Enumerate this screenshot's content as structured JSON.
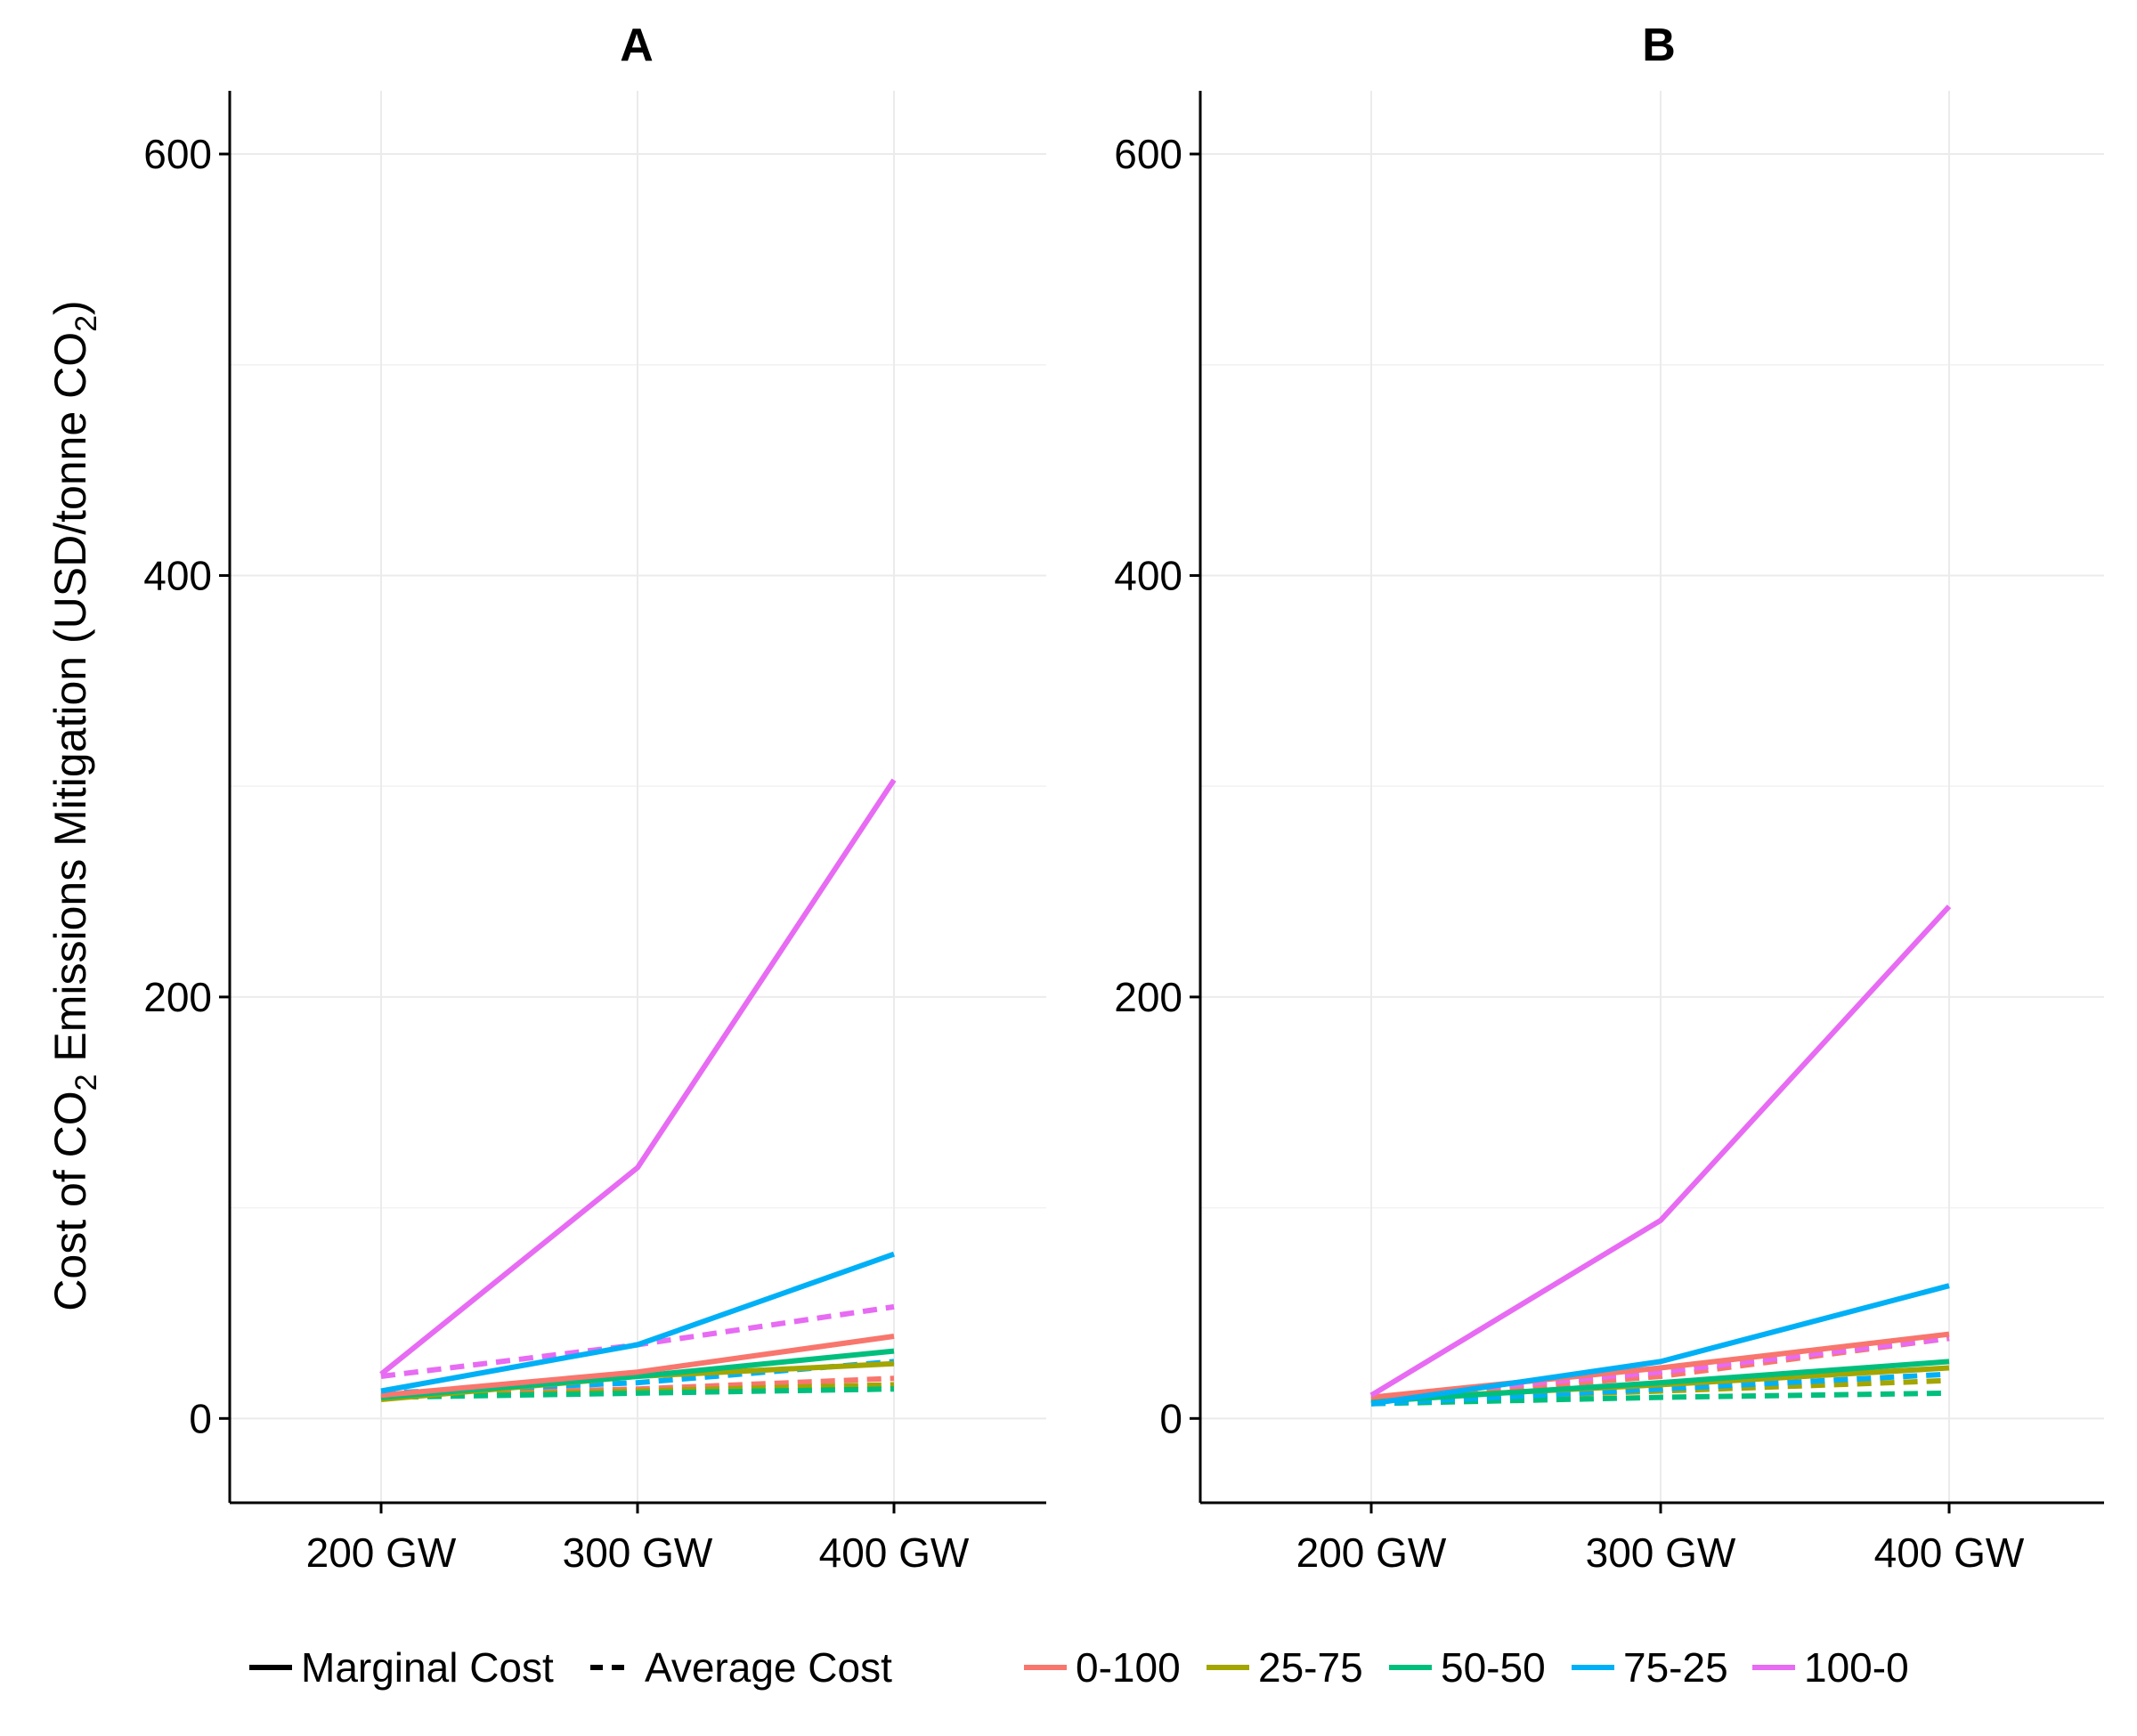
{
  "chart_data": {
    "type": "line",
    "y_axis_label": {
      "parts": [
        {
          "t": "Cost of CO"
        },
        {
          "t": "2",
          "sub": true
        },
        {
          "t": " Emissions Mitigation (USD/tonne CO"
        },
        {
          "t": "2",
          "sub": true
        },
        {
          "t": ")"
        }
      ]
    },
    "x_categories": [
      "200 GW",
      "300 GW",
      "400 GW"
    ],
    "ylim": [
      -40,
      630
    ],
    "yticks": [
      0,
      200,
      400,
      600
    ],
    "grid": true,
    "legend_position": "bottom",
    "line_type_legend": [
      {
        "label": "Marginal Cost",
        "dash": "solid"
      },
      {
        "label": "Average Cost",
        "dash": "dashed"
      }
    ],
    "series_colors": [
      {
        "name": "0-100",
        "color": "#F8766D"
      },
      {
        "name": "25-75",
        "color": "#A3A500"
      },
      {
        "name": "50-50",
        "color": "#00BF7D"
      },
      {
        "name": "75-25",
        "color": "#00B0F6"
      },
      {
        "name": "100-0",
        "color": "#E76BF3"
      }
    ],
    "panels": [
      {
        "title": "A",
        "series": [
          {
            "name": "0-100",
            "cost": "Average Cost",
            "values": [
              11,
              14,
              19
            ]
          },
          {
            "name": "25-75",
            "cost": "Average Cost",
            "values": [
              10,
              13,
              16
            ]
          },
          {
            "name": "50-50",
            "cost": "Average Cost",
            "values": [
              10,
              12,
              14
            ]
          },
          {
            "name": "75-25",
            "cost": "Average Cost",
            "values": [
              12,
              17,
              27
            ]
          },
          {
            "name": "100-0",
            "cost": "Average Cost",
            "values": [
              20,
              35,
              53
            ]
          },
          {
            "name": "25-75",
            "cost": "Marginal Cost",
            "values": [
              9,
              20,
              26
            ]
          },
          {
            "name": "50-50",
            "cost": "Marginal Cost",
            "values": [
              10,
              20,
              32
            ]
          },
          {
            "name": "0-100",
            "cost": "Marginal Cost",
            "values": [
              11,
              22,
              39
            ]
          },
          {
            "name": "75-25",
            "cost": "Marginal Cost",
            "values": [
              13,
              35,
              78
            ]
          },
          {
            "name": "100-0",
            "cost": "Marginal Cost",
            "values": [
              21,
              119,
              303
            ]
          }
        ]
      },
      {
        "title": "B",
        "series": [
          {
            "name": "0-100",
            "cost": "Average Cost",
            "values": [
              9,
              20,
              38
            ]
          },
          {
            "name": "25-75",
            "cost": "Average Cost",
            "values": [
              8,
              13,
              18
            ]
          },
          {
            "name": "50-50",
            "cost": "Average Cost",
            "values": [
              7,
              10,
              12
            ]
          },
          {
            "name": "75-25",
            "cost": "Average Cost",
            "values": [
              7,
              14,
              21
            ]
          },
          {
            "name": "100-0",
            "cost": "Average Cost",
            "values": [
              10,
              22,
              38
            ]
          },
          {
            "name": "25-75",
            "cost": "Marginal Cost",
            "values": [
              9,
              16,
              24
            ]
          },
          {
            "name": "50-50",
            "cost": "Marginal Cost",
            "values": [
              8,
              17,
              27
            ]
          },
          {
            "name": "0-100",
            "cost": "Marginal Cost",
            "values": [
              10,
              24,
              40
            ]
          },
          {
            "name": "75-25",
            "cost": "Marginal Cost",
            "values": [
              7,
              27,
              63
            ]
          },
          {
            "name": "100-0",
            "cost": "Marginal Cost",
            "values": [
              11,
              94,
              243
            ]
          }
        ]
      }
    ]
  }
}
